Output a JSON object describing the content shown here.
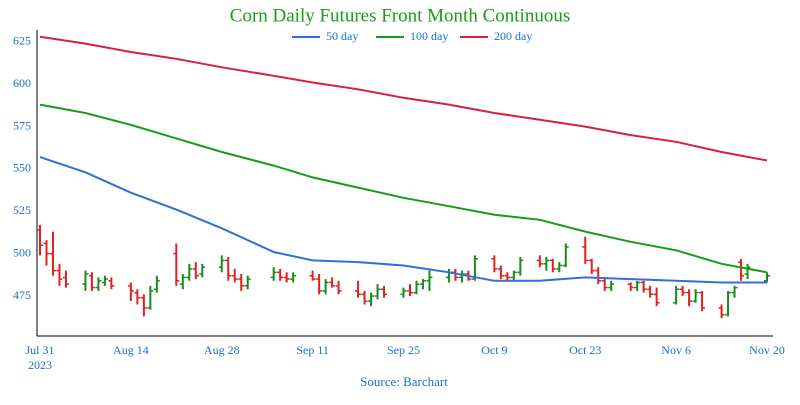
{
  "chart_data": {
    "type": "ohlc",
    "title": "Corn Daily Futures Front Month Continuous",
    "source": "Source: Barchart",
    "legend": "top",
    "up_color": "#1a8a1a",
    "down_color": "#e02020",
    "x": [
      "2023-07-31",
      "2023-08-01",
      "2023-08-02",
      "2023-08-03",
      "2023-08-04",
      "2023-08-07",
      "2023-08-08",
      "2023-08-09",
      "2023-08-10",
      "2023-08-11",
      "2023-08-14",
      "2023-08-15",
      "2023-08-16",
      "2023-08-17",
      "2023-08-18",
      "2023-08-21",
      "2023-08-22",
      "2023-08-23",
      "2023-08-24",
      "2023-08-25",
      "2023-08-28",
      "2023-08-29",
      "2023-08-30",
      "2023-08-31",
      "2023-09-01",
      "2023-09-05",
      "2023-09-06",
      "2023-09-07",
      "2023-09-08",
      "2023-09-11",
      "2023-09-12",
      "2023-09-13",
      "2023-09-14",
      "2023-09-15",
      "2023-09-18",
      "2023-09-19",
      "2023-09-20",
      "2023-09-21",
      "2023-09-22",
      "2023-09-25",
      "2023-09-26",
      "2023-09-27",
      "2023-09-28",
      "2023-09-29",
      "2023-10-02",
      "2023-10-03",
      "2023-10-04",
      "2023-10-05",
      "2023-10-06",
      "2023-10-09",
      "2023-10-10",
      "2023-10-11",
      "2023-10-12",
      "2023-10-13",
      "2023-10-16",
      "2023-10-17",
      "2023-10-18",
      "2023-10-19",
      "2023-10-20",
      "2023-10-23",
      "2023-10-24",
      "2023-10-25",
      "2023-10-26",
      "2023-10-27",
      "2023-10-30",
      "2023-10-31",
      "2023-11-01",
      "2023-11-02",
      "2023-11-03",
      "2023-11-06",
      "2023-11-07",
      "2023-11-08",
      "2023-11-09",
      "2023-11-10",
      "2023-11-13",
      "2023-11-14",
      "2023-11-15",
      "2023-11-16",
      "2023-11-17",
      "2023-11-20"
    ],
    "open": [
      514,
      506,
      500,
      490,
      486,
      482,
      487,
      480,
      483,
      484,
      481,
      477,
      474,
      468,
      479,
      500,
      482,
      486,
      491,
      488,
      492,
      496,
      487,
      485,
      481,
      486,
      489,
      486,
      485,
      487,
      485,
      478,
      483,
      481,
      478,
      476,
      472,
      475,
      479,
      476,
      478,
      477,
      482,
      484,
      486,
      489,
      486,
      488,
      485,
      497,
      491,
      487,
      486,
      489,
      496,
      494,
      496,
      491,
      493,
      504,
      496,
      490,
      484,
      480,
      482,
      480,
      483,
      479,
      476,
      471,
      479,
      477,
      472,
      477,
      468,
      464,
      477,
      495,
      488,
      484
    ],
    "high": [
      517,
      508,
      513,
      494,
      490,
      490,
      489,
      486,
      487,
      486,
      483,
      479,
      476,
      481,
      487,
      506,
      488,
      494,
      495,
      494,
      499,
      498,
      491,
      488,
      487,
      492,
      491,
      489,
      489,
      490,
      488,
      485,
      486,
      484,
      484,
      478,
      477,
      482,
      481,
      480,
      482,
      484,
      485,
      490,
      491,
      491,
      490,
      490,
      499,
      499,
      493,
      489,
      490,
      498,
      499,
      498,
      497,
      495,
      506,
      510,
      497,
      492,
      486,
      484,
      483,
      484,
      484,
      481,
      480,
      481,
      481,
      479,
      479,
      478,
      470,
      478,
      481,
      497,
      494,
      489
    ],
    "low": [
      499,
      493,
      487,
      481,
      480,
      478,
      478,
      478,
      481,
      479,
      472,
      470,
      463,
      467,
      477,
      481,
      479,
      484,
      485,
      486,
      489,
      484,
      483,
      478,
      479,
      484,
      484,
      483,
      483,
      484,
      476,
      476,
      480,
      476,
      474,
      470,
      469,
      473,
      474,
      474,
      475,
      476,
      479,
      478,
      483,
      484,
      483,
      484,
      484,
      489,
      485,
      484,
      484,
      487,
      492,
      490,
      489,
      489,
      492,
      494,
      488,
      482,
      478,
      478,
      478,
      478,
      477,
      474,
      469,
      470,
      475,
      469,
      471,
      466,
      462,
      463,
      474,
      484,
      485,
      483
    ],
    "close": [
      505,
      500,
      490,
      485,
      482,
      488,
      480,
      484,
      485,
      481,
      478,
      474,
      468,
      478,
      484,
      484,
      486,
      491,
      487,
      492,
      496,
      487,
      485,
      481,
      485,
      489,
      486,
      485,
      487,
      485,
      478,
      483,
      481,
      478,
      476,
      472,
      475,
      479,
      476,
      478,
      477,
      482,
      484,
      486,
      489,
      486,
      488,
      485,
      497,
      491,
      487,
      486,
      489,
      496,
      494,
      496,
      491,
      493,
      504,
      496,
      490,
      484,
      480,
      482,
      480,
      483,
      479,
      476,
      471,
      479,
      477,
      472,
      477,
      468,
      464,
      477,
      480,
      487,
      492,
      487
    ],
    "series": [
      {
        "name": "50 day",
        "color": "#2f6fd6",
        "x": [
          "2023-07-31",
          "2023-08-07",
          "2023-08-14",
          "2023-08-21",
          "2023-08-28",
          "2023-09-05",
          "2023-09-11",
          "2023-09-18",
          "2023-09-25",
          "2023-10-02",
          "2023-10-09",
          "2023-10-16",
          "2023-10-23",
          "2023-10-30",
          "2023-11-06",
          "2023-11-13",
          "2023-11-20"
        ],
        "values": [
          557,
          548,
          536,
          526,
          515,
          501,
          496,
          495,
          493,
          489,
          484,
          484,
          486,
          485,
          484,
          483,
          483
        ]
      },
      {
        "name": "100 day",
        "color": "#1a9a1a",
        "x": [
          "2023-07-31",
          "2023-08-07",
          "2023-08-14",
          "2023-08-21",
          "2023-08-28",
          "2023-09-05",
          "2023-09-11",
          "2023-09-18",
          "2023-09-25",
          "2023-10-02",
          "2023-10-09",
          "2023-10-16",
          "2023-10-23",
          "2023-10-30",
          "2023-11-06",
          "2023-11-13",
          "2023-11-20"
        ],
        "values": [
          588,
          583,
          576,
          568,
          560,
          552,
          545,
          539,
          533,
          528,
          523,
          520,
          513,
          507,
          502,
          494,
          489
        ]
      },
      {
        "name": "200 day",
        "color": "#d62040",
        "x": [
          "2023-07-31",
          "2023-08-07",
          "2023-08-14",
          "2023-08-21",
          "2023-08-28",
          "2023-09-05",
          "2023-09-11",
          "2023-09-18",
          "2023-09-25",
          "2023-10-02",
          "2023-10-09",
          "2023-10-16",
          "2023-10-23",
          "2023-10-30",
          "2023-11-06",
          "2023-11-13",
          "2023-11-20"
        ],
        "values": [
          628,
          624,
          619,
          615,
          610,
          605,
          601,
          597,
          592,
          588,
          583,
          579,
          575,
          570,
          566,
          560,
          555
        ]
      }
    ],
    "xlim": [
      "2023-07-31",
      "2023-11-20"
    ],
    "xticks": [
      {
        "value": "2023-07-31",
        "label": "Jul 31\n2023"
      },
      {
        "value": "2023-08-14",
        "label": "Aug 14"
      },
      {
        "value": "2023-08-28",
        "label": "Aug 28"
      },
      {
        "value": "2023-09-11",
        "label": "Sep 11"
      },
      {
        "value": "2023-09-25",
        "label": "Sep 25"
      },
      {
        "value": "2023-10-09",
        "label": "Oct 9"
      },
      {
        "value": "2023-10-23",
        "label": "Oct 23"
      },
      {
        "value": "2023-11-06",
        "label": "Nov 6"
      },
      {
        "value": "2023-11-20",
        "label": "Nov 20"
      }
    ],
    "ylim": [
      452,
      632
    ],
    "yticks": [
      475,
      500,
      525,
      550,
      575,
      600,
      625
    ]
  }
}
